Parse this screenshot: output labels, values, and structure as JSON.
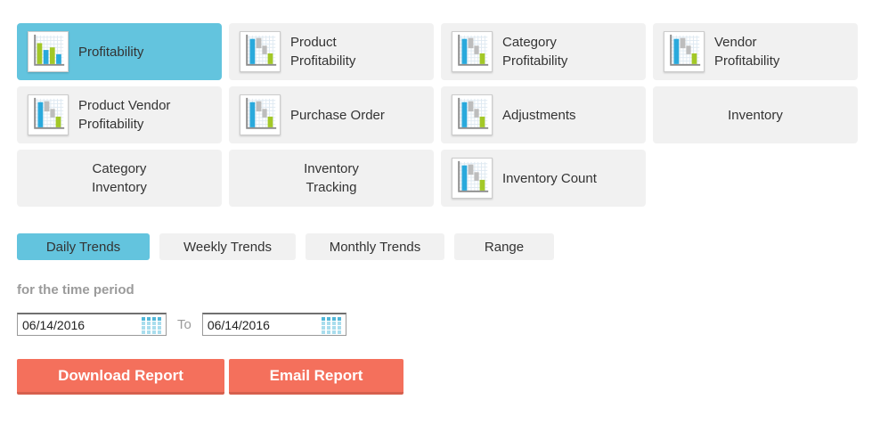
{
  "report_selector": {
    "items": [
      {
        "label": "Profitability",
        "lines": [
          "Profitability"
        ],
        "icon": "bar-chart-icon",
        "selected": true
      },
      {
        "label": "Product Profitability",
        "lines": [
          "Product",
          "Profitability"
        ],
        "icon": "waterfall-chart-icon",
        "selected": false
      },
      {
        "label": "Category Profitability",
        "lines": [
          "Category",
          "Profitability"
        ],
        "icon": "waterfall-chart-icon",
        "selected": false
      },
      {
        "label": "Vendor Profitability",
        "lines": [
          "Vendor",
          "Profitability"
        ],
        "icon": "waterfall-chart-icon",
        "selected": false
      },
      {
        "label": "Product Vendor Profitability",
        "lines": [
          "Product Vendor",
          "Profitability"
        ],
        "icon": "waterfall-chart-icon",
        "selected": false
      },
      {
        "label": "Purchase Order",
        "lines": [
          "Purchase Order"
        ],
        "icon": "waterfall-chart-icon",
        "selected": false
      },
      {
        "label": "Adjustments",
        "lines": [
          "Adjustments"
        ],
        "icon": "waterfall-chart-icon",
        "selected": false
      },
      {
        "label": "Inventory",
        "lines": [
          "Inventory"
        ],
        "icon": null,
        "selected": false
      },
      {
        "label": "Category Inventory",
        "lines": [
          "Category",
          "Inventory"
        ],
        "icon": null,
        "selected": false
      },
      {
        "label": "Inventory Tracking",
        "lines": [
          "Inventory",
          "Tracking"
        ],
        "icon": null,
        "selected": false
      },
      {
        "label": "Inventory Count",
        "lines": [
          "Inventory Count"
        ],
        "icon": "waterfall-chart-icon",
        "selected": false
      }
    ]
  },
  "trend_tabs": {
    "items": [
      {
        "label": "Daily Trends",
        "selected": true
      },
      {
        "label": "Weekly Trends",
        "selected": false
      },
      {
        "label": "Monthly Trends",
        "selected": false
      },
      {
        "label": "Range",
        "selected": false
      }
    ]
  },
  "time_period": {
    "heading": "for the time period",
    "start_date": "06/14/2016",
    "separator": "To",
    "end_date": "06/14/2016",
    "calendar_icon": "calendar-grid-icon"
  },
  "actions": {
    "download": "Download Report",
    "email": "Email Report"
  },
  "colors": {
    "selected_blue": "#63c4de",
    "tile_gray": "#f1f1f1",
    "action_coral": "#f4705c",
    "action_coral_dark": "#d6604e",
    "icon_bar_blue": "#29a9dc",
    "icon_bar_green": "#a3c827",
    "icon_bar_gray": "#bdbdbd",
    "icon_grid_line": "#dfeaf2",
    "icon_axis_gray": "#8c8c8c",
    "calendar_blue_dark": "#53b7d8",
    "calendar_blue_light": "#a9dded"
  }
}
